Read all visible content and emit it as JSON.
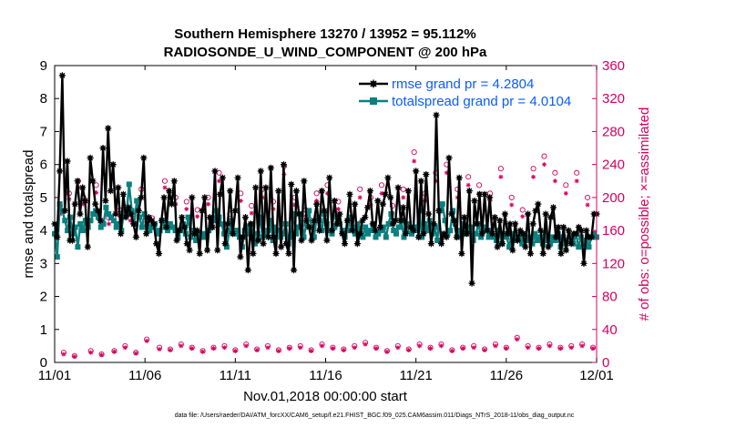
{
  "figure": {
    "footer": "data file: /Users/raeder/DAI/ATM_forcXX/CAM6_setup/f.e21.FHIST_BGC.f09_025.CAM6assim.011/Diags_NTrS_2018-11/obs_diag_output.nc"
  },
  "chart_data": {
    "type": "line",
    "title": "Southern Hemisphere 13270 / 13952 = 95.112%",
    "subtitle": "RADIOSONDE_U_WIND_COMPONENT @ 200 hPa",
    "xlabel": "Nov.01,2018 00:00:00 start",
    "ylabel": "rmse and totalspread",
    "ylabel_right": "# of obs: o=possible; ×=assimilated",
    "xlim": [
      0,
      30
    ],
    "ylim": [
      0,
      9
    ],
    "ylim_right": [
      0,
      360
    ],
    "x_ticks": [
      0,
      5,
      10,
      15,
      20,
      25,
      30
    ],
    "x_tick_labels": [
      "11/01",
      "11/06",
      "11/11",
      "11/16",
      "11/21",
      "11/26",
      "12/01"
    ],
    "y_ticks": [
      "0",
      "1",
      "2",
      "3",
      "4",
      "5",
      "6",
      "7",
      "8",
      "9"
    ],
    "y_ticks_right": [
      "0",
      "40",
      "80",
      "120",
      "160",
      "200",
      "240",
      "280",
      "320",
      "360"
    ],
    "legend": {
      "position": "top-right",
      "entries": [
        "rmse grand pr = 4.2804",
        "totalspread grand pr = 4.0104"
      ]
    },
    "colors": {
      "rmse": "#000000",
      "totalspread": "#0a8080",
      "obs": "#d6005c",
      "legend_text": "#0b5cff"
    },
    "series": [
      {
        "name": "rmse",
        "values": [
          4.2,
          3.8,
          5.8,
          8.7,
          4.6,
          6.1,
          3.7,
          3.7,
          4.8,
          5.5,
          4.5,
          5.3,
          4.9,
          3.5,
          6.2,
          5.5,
          4.8,
          4.6,
          4.3,
          6.5,
          4.9,
          7.1,
          5.2,
          6.0,
          4.5,
          5.3,
          3.9,
          5.1,
          4.4,
          4.7,
          4.5,
          4.2,
          3.8,
          4.6,
          5.0,
          6.2,
          3.9,
          4.4,
          4.3,
          4.2,
          3.6,
          3.3,
          4.3,
          5.0,
          4.1,
          5.2,
          4.8,
          5.5,
          3.7,
          4.0,
          4.4,
          4.1,
          3.6,
          3.4,
          5.0,
          3.9,
          4.0,
          3.3,
          4.6,
          5.0,
          3.4,
          4.4,
          4.1,
          5.8,
          3.4,
          5.1,
          5.6,
          3.6,
          4.2,
          5.2,
          3.9,
          4.6,
          5.6,
          3.2,
          3.8,
          4.4,
          2.8,
          4.2,
          3.3,
          5.3,
          3.7,
          5.8,
          3.6,
          5.3,
          3.8,
          5.9,
          3.8,
          3.3,
          5.2,
          3.5,
          6.0,
          3.6,
          3.3,
          5.4,
          2.8,
          5.2,
          4.5,
          3.7,
          5.5,
          4.3,
          4.1,
          3.7,
          4.3,
          4.8,
          4.0,
          5.2,
          4.6,
          3.7,
          5.6,
          4.0,
          4.9,
          4.2,
          4.5,
          3.9,
          3.6,
          4.3,
          5.1,
          4.0,
          4.8,
          3.6,
          3.9,
          4.3,
          4.4,
          4.7,
          5.2,
          4.2,
          4.0,
          4.9,
          4.1,
          4.8,
          5.1,
          5.6,
          5.0,
          4.2,
          4.3,
          5.3,
          4.3,
          4.7,
          3.9,
          5.2,
          4.1,
          4.0,
          5.8,
          3.8,
          5.5,
          3.9,
          5.7,
          4.5,
          3.6,
          4.2,
          7.5,
          4.6,
          3.6,
          3.9,
          3.8,
          6.2,
          4.5,
          4.3,
          3.8,
          5.6,
          3.3,
          4.4,
          3.9,
          5.2,
          2.4,
          4.9,
          4.2,
          5.1,
          3.9,
          5.1,
          4.0,
          5.0,
          3.9,
          4.4,
          3.5,
          4.3,
          3.6,
          4.5,
          3.9,
          4.2,
          3.4,
          4.2,
          3.7,
          4.0,
          3.9,
          3.5,
          4.5,
          3.3,
          4.2,
          4.6,
          4.8,
          4.0,
          3.3,
          4.5,
          3.5,
          4.4,
          4.7,
          3.8,
          4.1,
          3.3,
          4.1,
          3.4,
          4.0,
          3.6,
          3.9,
          3.9,
          4.1,
          4.0,
          3.0,
          4.0,
          3.8,
          3.8,
          4.5,
          4.5
        ]
      },
      {
        "name": "totalspread",
        "values": [
          3.9,
          3.2,
          4.8,
          4.6,
          4.3,
          4.0,
          4.4,
          3.9,
          4.1,
          3.5,
          4.2,
          4.0,
          4.3,
          4.1,
          4.3,
          4.5,
          4.6,
          4.4,
          4.1,
          4.2,
          4.7,
          4.5,
          4.4,
          4.3,
          4.1,
          4.2,
          4.0,
          4.6,
          4.5,
          5.4,
          4.6,
          4.2,
          4.9,
          4.4,
          4.1,
          4.5,
          4.2,
          4.0,
          4.1,
          4.2,
          3.9,
          4.0,
          4.3,
          4.1,
          4.0,
          4.2,
          4.1,
          4.0,
          3.8,
          4.0,
          4.2,
          3.9,
          4.4,
          3.8,
          4.0,
          3.7,
          3.9,
          3.8,
          3.9,
          3.8,
          4.0,
          4.1,
          4.3,
          4.6,
          4.4,
          4.2,
          3.9,
          3.5,
          4.0,
          4.3,
          3.9,
          4.0,
          3.8,
          3.5,
          4.0,
          4.1,
          3.9,
          4.2,
          3.6,
          3.9,
          4.4,
          3.8,
          3.9,
          4.0,
          4.3,
          3.7,
          4.1,
          4.0,
          3.8,
          3.9,
          4.2,
          3.6,
          3.8,
          4.5,
          3.9,
          4.1,
          4.5,
          3.8,
          4.2,
          4.6,
          4.1,
          3.8,
          4.4,
          4.3,
          4.0,
          4.5,
          4.2,
          4.0,
          3.9,
          4.1,
          4.4,
          4.2,
          4.0,
          3.8,
          4.0,
          4.4,
          4.1,
          3.9,
          4.2,
          4.0,
          3.8,
          4.1,
          3.9,
          4.0,
          4.2,
          3.8,
          3.9,
          4.0,
          4.1,
          3.8,
          4.2,
          4.5,
          4.0,
          3.9,
          4.1,
          4.3,
          3.8,
          4.0,
          4.2,
          3.9,
          4.1,
          4.0,
          4.6,
          3.8,
          4.2,
          4.0,
          4.3,
          3.9,
          4.1,
          3.7,
          4.6,
          4.8,
          4.3,
          3.9,
          4.0,
          4.6,
          4.2,
          3.8,
          4.0,
          4.2,
          3.9,
          4.0,
          4.1,
          3.7,
          3.9,
          4.2,
          3.8,
          4.0,
          4.1,
          3.8,
          4.0,
          3.8,
          3.7,
          4.0,
          3.6,
          3.9,
          3.8,
          3.5,
          3.9,
          3.7,
          3.8,
          3.8,
          3.6,
          3.9,
          3.7,
          3.8,
          3.6,
          3.9,
          3.7,
          3.8,
          3.6,
          3.9,
          3.7,
          3.6,
          3.8,
          3.7,
          3.9,
          3.5,
          3.8,
          3.6,
          3.7,
          3.8,
          3.6,
          3.9,
          3.5,
          3.8,
          3.6,
          3.7,
          3.5,
          3.8,
          3.9,
          3.8
        ]
      }
    ],
    "obs_series": [
      {
        "name": "possible",
        "marker": "o",
        "points": [
          [
            0.3,
            190
          ],
          [
            0.5,
            12
          ],
          [
            0.8,
            205
          ],
          [
            1.1,
            8
          ],
          [
            1.3,
            220
          ],
          [
            1.6,
            200
          ],
          [
            2.0,
            14
          ],
          [
            2.3,
            215
          ],
          [
            2.6,
            10
          ],
          [
            3.0,
            175
          ],
          [
            3.3,
            14
          ],
          [
            3.6,
            185
          ],
          [
            3.9,
            20
          ],
          [
            4.2,
            180
          ],
          [
            4.5,
            12
          ],
          [
            4.8,
            210
          ],
          [
            5.1,
            28
          ],
          [
            5.4,
            175
          ],
          [
            5.8,
            18
          ],
          [
            6.1,
            220
          ],
          [
            6.4,
            16
          ],
          [
            6.7,
            200
          ],
          [
            7.0,
            22
          ],
          [
            7.3,
            195
          ],
          [
            7.6,
            18
          ],
          [
            7.9,
            185
          ],
          [
            8.2,
            14
          ],
          [
            8.5,
            200
          ],
          [
            8.8,
            18
          ],
          [
            9.1,
            230
          ],
          [
            9.4,
            20
          ],
          [
            9.7,
            180
          ],
          [
            10.0,
            15
          ],
          [
            10.3,
            205
          ],
          [
            10.6,
            22
          ],
          [
            10.9,
            190
          ],
          [
            11.2,
            16
          ],
          [
            11.5,
            210
          ],
          [
            11.8,
            20
          ],
          [
            12.1,
            195
          ],
          [
            12.4,
            15
          ],
          [
            12.7,
            238
          ],
          [
            13.0,
            18
          ],
          [
            13.3,
            200
          ],
          [
            13.6,
            20
          ],
          [
            13.9,
            185
          ],
          [
            14.2,
            15
          ],
          [
            14.5,
            205
          ],
          [
            14.8,
            22
          ],
          [
            15.1,
            215
          ],
          [
            15.4,
            18
          ],
          [
            15.7,
            195
          ],
          [
            16.0,
            16
          ],
          [
            16.3,
            175
          ],
          [
            16.6,
            20
          ],
          [
            16.9,
            210
          ],
          [
            17.2,
            24
          ],
          [
            17.5,
            200
          ],
          [
            17.8,
            18
          ],
          [
            18.1,
            215
          ],
          [
            18.4,
            14
          ],
          [
            18.7,
            190
          ],
          [
            19.0,
            20
          ],
          [
            19.3,
            210
          ],
          [
            19.6,
            16
          ],
          [
            19.9,
            255
          ],
          [
            20.2,
            22
          ],
          [
            20.5,
            205
          ],
          [
            20.8,
            18
          ],
          [
            21.1,
            230
          ],
          [
            21.4,
            22
          ],
          [
            21.7,
            240
          ],
          [
            22.0,
            15
          ],
          [
            22.3,
            210
          ],
          [
            22.6,
            18
          ],
          [
            22.9,
            225
          ],
          [
            23.2,
            20
          ],
          [
            23.5,
            215
          ],
          [
            23.8,
            16
          ],
          [
            24.1,
            205
          ],
          [
            24.4,
            22
          ],
          [
            24.7,
            235
          ],
          [
            25.0,
            18
          ],
          [
            25.3,
            200
          ],
          [
            25.6,
            30
          ],
          [
            25.9,
            185
          ],
          [
            26.2,
            20
          ],
          [
            26.5,
            235
          ],
          [
            26.8,
            18
          ],
          [
            27.1,
            250
          ],
          [
            27.4,
            22
          ],
          [
            27.7,
            230
          ],
          [
            28.0,
            18
          ],
          [
            28.3,
            215
          ],
          [
            28.6,
            20
          ],
          [
            28.9,
            230
          ],
          [
            29.2,
            22
          ],
          [
            29.5,
            200
          ],
          [
            29.8,
            18
          ]
        ]
      },
      {
        "name": "assimilated",
        "marker": "x",
        "points": [
          [
            0.3,
            180
          ],
          [
            0.5,
            10
          ],
          [
            0.8,
            198
          ],
          [
            1.1,
            7
          ],
          [
            1.3,
            212
          ],
          [
            1.6,
            192
          ],
          [
            2.0,
            12
          ],
          [
            2.3,
            206
          ],
          [
            2.6,
            9
          ],
          [
            3.0,
            168
          ],
          [
            3.3,
            13
          ],
          [
            3.6,
            178
          ],
          [
            3.9,
            18
          ],
          [
            4.2,
            172
          ],
          [
            4.5,
            11
          ],
          [
            4.8,
            200
          ],
          [
            5.1,
            26
          ],
          [
            5.4,
            167
          ],
          [
            5.8,
            16
          ],
          [
            6.1,
            212
          ],
          [
            6.4,
            15
          ],
          [
            6.7,
            192
          ],
          [
            7.0,
            20
          ],
          [
            7.3,
            186
          ],
          [
            7.6,
            17
          ],
          [
            7.9,
            177
          ],
          [
            8.2,
            13
          ],
          [
            8.5,
            192
          ],
          [
            8.8,
            17
          ],
          [
            9.1,
            220
          ],
          [
            9.4,
            18
          ],
          [
            9.7,
            172
          ],
          [
            10.0,
            14
          ],
          [
            10.3,
            196
          ],
          [
            10.6,
            20
          ],
          [
            10.9,
            181
          ],
          [
            11.2,
            15
          ],
          [
            11.5,
            200
          ],
          [
            11.8,
            18
          ],
          [
            12.1,
            186
          ],
          [
            12.4,
            14
          ],
          [
            12.7,
            228
          ],
          [
            13.0,
            17
          ],
          [
            13.3,
            191
          ],
          [
            13.6,
            18
          ],
          [
            13.9,
            177
          ],
          [
            14.2,
            14
          ],
          [
            14.5,
            196
          ],
          [
            14.8,
            20
          ],
          [
            15.1,
            205
          ],
          [
            15.4,
            17
          ],
          [
            15.7,
            186
          ],
          [
            16.0,
            15
          ],
          [
            16.3,
            167
          ],
          [
            16.6,
            18
          ],
          [
            16.9,
            200
          ],
          [
            17.2,
            22
          ],
          [
            17.5,
            191
          ],
          [
            17.8,
            17
          ],
          [
            18.1,
            205
          ],
          [
            18.4,
            13
          ],
          [
            18.7,
            181
          ],
          [
            19.0,
            18
          ],
          [
            19.3,
            200
          ],
          [
            19.6,
            15
          ],
          [
            19.9,
            244
          ],
          [
            20.2,
            20
          ],
          [
            20.5,
            196
          ],
          [
            20.8,
            17
          ],
          [
            21.1,
            220
          ],
          [
            21.4,
            20
          ],
          [
            21.7,
            230
          ],
          [
            22.0,
            14
          ],
          [
            22.3,
            200
          ],
          [
            22.6,
            17
          ],
          [
            22.9,
            215
          ],
          [
            23.2,
            18
          ],
          [
            23.5,
            205
          ],
          [
            23.8,
            15
          ],
          [
            24.1,
            196
          ],
          [
            24.4,
            20
          ],
          [
            24.7,
            225
          ],
          [
            25.0,
            17
          ],
          [
            25.3,
            191
          ],
          [
            25.6,
            28
          ],
          [
            25.9,
            177
          ],
          [
            26.2,
            18
          ],
          [
            26.5,
            225
          ],
          [
            26.8,
            17
          ],
          [
            27.1,
            240
          ],
          [
            27.4,
            20
          ],
          [
            27.7,
            220
          ],
          [
            28.0,
            17
          ],
          [
            28.3,
            205
          ],
          [
            28.6,
            18
          ],
          [
            28.9,
            220
          ],
          [
            29.2,
            20
          ],
          [
            29.5,
            191
          ],
          [
            29.8,
            17
          ]
        ]
      }
    ]
  }
}
